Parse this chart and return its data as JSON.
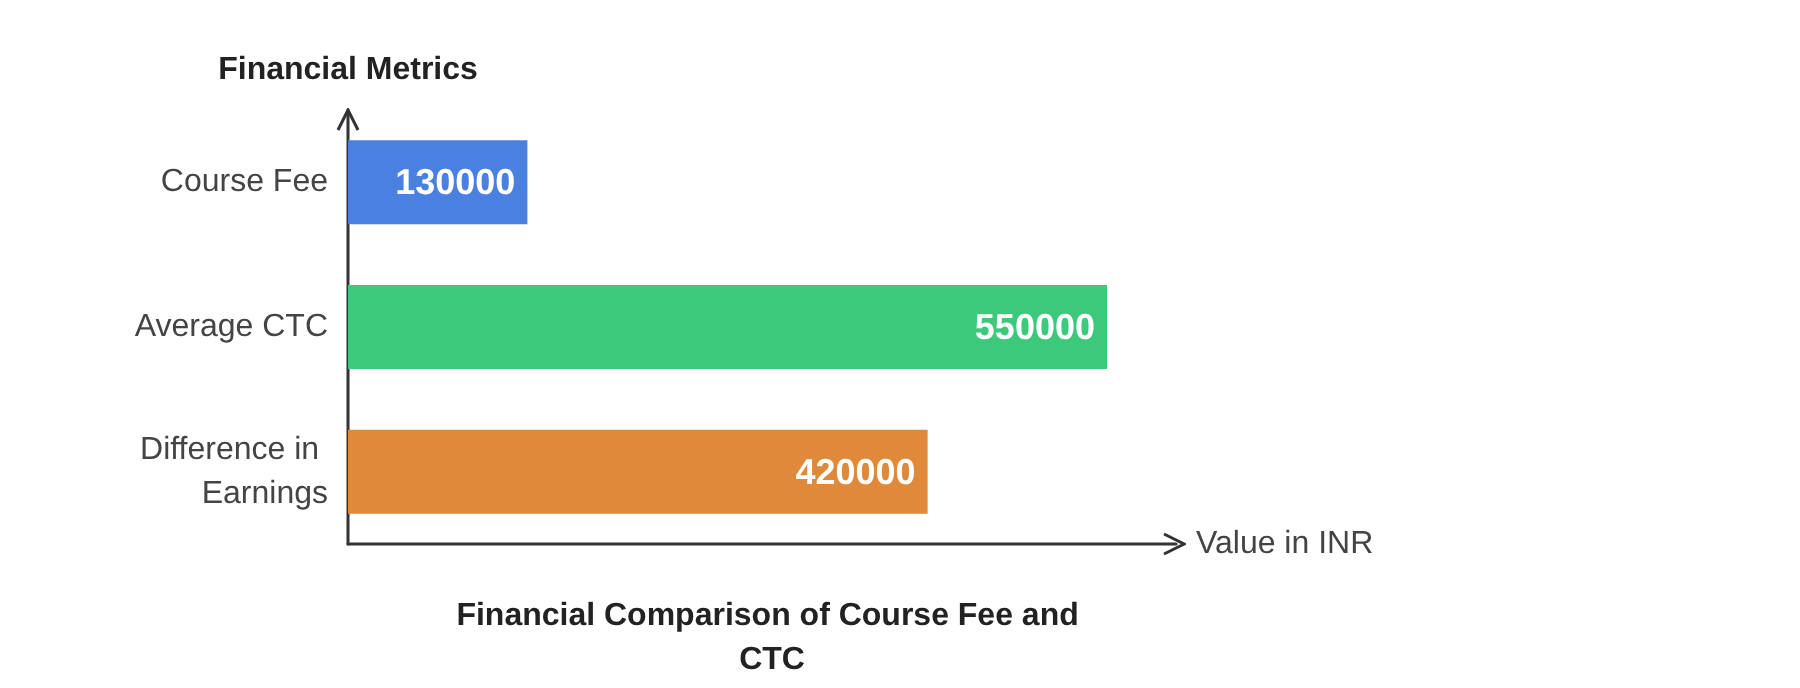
{
  "chart_data": {
    "type": "bar",
    "orientation": "horizontal",
    "title": "Financial Comparison of Course Fee and CTC",
    "xlabel": "Value in INR",
    "ylabel": "Financial Metrics",
    "categories": [
      "Course Fee",
      "Average CTC",
      "Difference in Earnings"
    ],
    "values": [
      130000,
      550000,
      420000
    ],
    "colors": [
      "#4a80e0",
      "#3dc97b",
      "#e0893a"
    ],
    "data_labels": true
  }
}
